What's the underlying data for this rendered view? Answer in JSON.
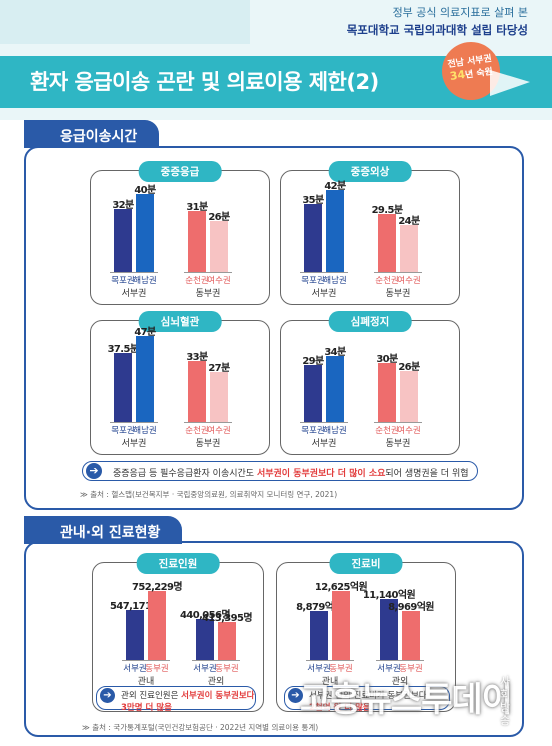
{
  "header": {
    "subtitle": "정부 공식 의료지표로 살펴 본",
    "main": "목포대학교 국립의과대학 설립 타당성",
    "title": "환자 응급이송 곤란 및 의료이용 제한(2)",
    "badge_line1": "전남 서부권",
    "badge_num": "34",
    "badge_line2": "년 숙원"
  },
  "section1": {
    "tab": "응급이송시간",
    "note_prefix": "중증응급 등 필수응급환자 이송시간도 ",
    "note_highlight": "서부권이 동부권보다 더 많이 소요",
    "note_suffix": "되어 생명권을 더 위협",
    "source": "≫ 출처 : 헬스맵(보건복지부 · 국립중앙의료원, 의료취약지 모니터링 연구, 2021)"
  },
  "section2": {
    "tab": "관내·외 진료현황",
    "note1_prefix": "관외 진료인원은 ",
    "note1_highlight": "서부권이 동부권보다",
    "note1_line2": "3만명 더 많음",
    "note2_text": "서부권 관외 진료비가 동부권보다",
    "note2_line2": "2천억 원 더 많음",
    "source": "≫ 출처 : 국가통계포털(국민건강보험공단 · 2022년 지역별 의료이용 통계)"
  },
  "chart_data": [
    {
      "type": "bar",
      "title": "중증응급",
      "categories": [
        "목포권",
        "해남권",
        "순천권",
        "여수권"
      ],
      "groups": [
        "서부권",
        "서부권",
        "동부권",
        "동부권"
      ],
      "values": [
        32,
        40,
        31,
        26
      ],
      "labels": [
        "32분",
        "40분",
        "31분",
        "26분"
      ],
      "colors": [
        "#2e3a8f",
        "#1a66c0",
        "#ee6d6d",
        "#f7c3c3"
      ]
    },
    {
      "type": "bar",
      "title": "중증외상",
      "categories": [
        "목포권",
        "해남권",
        "순천권",
        "여수권"
      ],
      "groups": [
        "서부권",
        "서부권",
        "동부권",
        "동부권"
      ],
      "values": [
        35,
        42,
        29.5,
        24
      ],
      "labels": [
        "35분",
        "42분",
        "29.5분",
        "24분"
      ],
      "colors": [
        "#2e3a8f",
        "#1a66c0",
        "#ee6d6d",
        "#f7c3c3"
      ]
    },
    {
      "type": "bar",
      "title": "심뇌혈관",
      "categories": [
        "목포권",
        "해남권",
        "순천권",
        "여수권"
      ],
      "groups": [
        "서부권",
        "서부권",
        "동부권",
        "동부권"
      ],
      "values": [
        37.5,
        47,
        33,
        27
      ],
      "labels": [
        "37.5분",
        "47분",
        "33분",
        "27분"
      ],
      "colors": [
        "#2e3a8f",
        "#1a66c0",
        "#ee6d6d",
        "#f7c3c3"
      ]
    },
    {
      "type": "bar",
      "title": "심폐정지",
      "categories": [
        "목포권",
        "해남권",
        "순천권",
        "여수권"
      ],
      "groups": [
        "서부권",
        "서부권",
        "동부권",
        "동부권"
      ],
      "values": [
        29,
        34,
        30,
        26
      ],
      "labels": [
        "29분",
        "34분",
        "30분",
        "26분"
      ],
      "colors": [
        "#2e3a8f",
        "#1a66c0",
        "#ee6d6d",
        "#f7c3c3"
      ]
    },
    {
      "type": "bar",
      "title": "진료인원",
      "categories": [
        "서부권",
        "동부권",
        "서부권",
        "동부권"
      ],
      "groups": [
        "관내",
        "관내",
        "관외",
        "관외"
      ],
      "values": [
        547171,
        752229,
        440056,
        413395
      ],
      "labels": [
        "547,171명",
        "752,229명",
        "440,056명",
        "413,395명"
      ],
      "colors": [
        "#2e3a8f",
        "#ee6d6d",
        "#2e3a8f",
        "#ee6d6d"
      ]
    },
    {
      "type": "bar",
      "title": "진료비",
      "categories": [
        "서부권",
        "동부권",
        "서부권",
        "동부권"
      ],
      "groups": [
        "관내",
        "관내",
        "관외",
        "관외"
      ],
      "values": [
        8879,
        12625,
        11140,
        8969
      ],
      "labels": [
        "8,879억원",
        "12,625억원",
        "11,140억원",
        "8,969억원"
      ],
      "colors": [
        "#2e3a8f",
        "#ee6d6d",
        "#2e3a8f",
        "#ee6d6d"
      ]
    }
  ],
  "watermark": {
    "text": "고흥뉴스투데이",
    "sub": "사회방송"
  }
}
